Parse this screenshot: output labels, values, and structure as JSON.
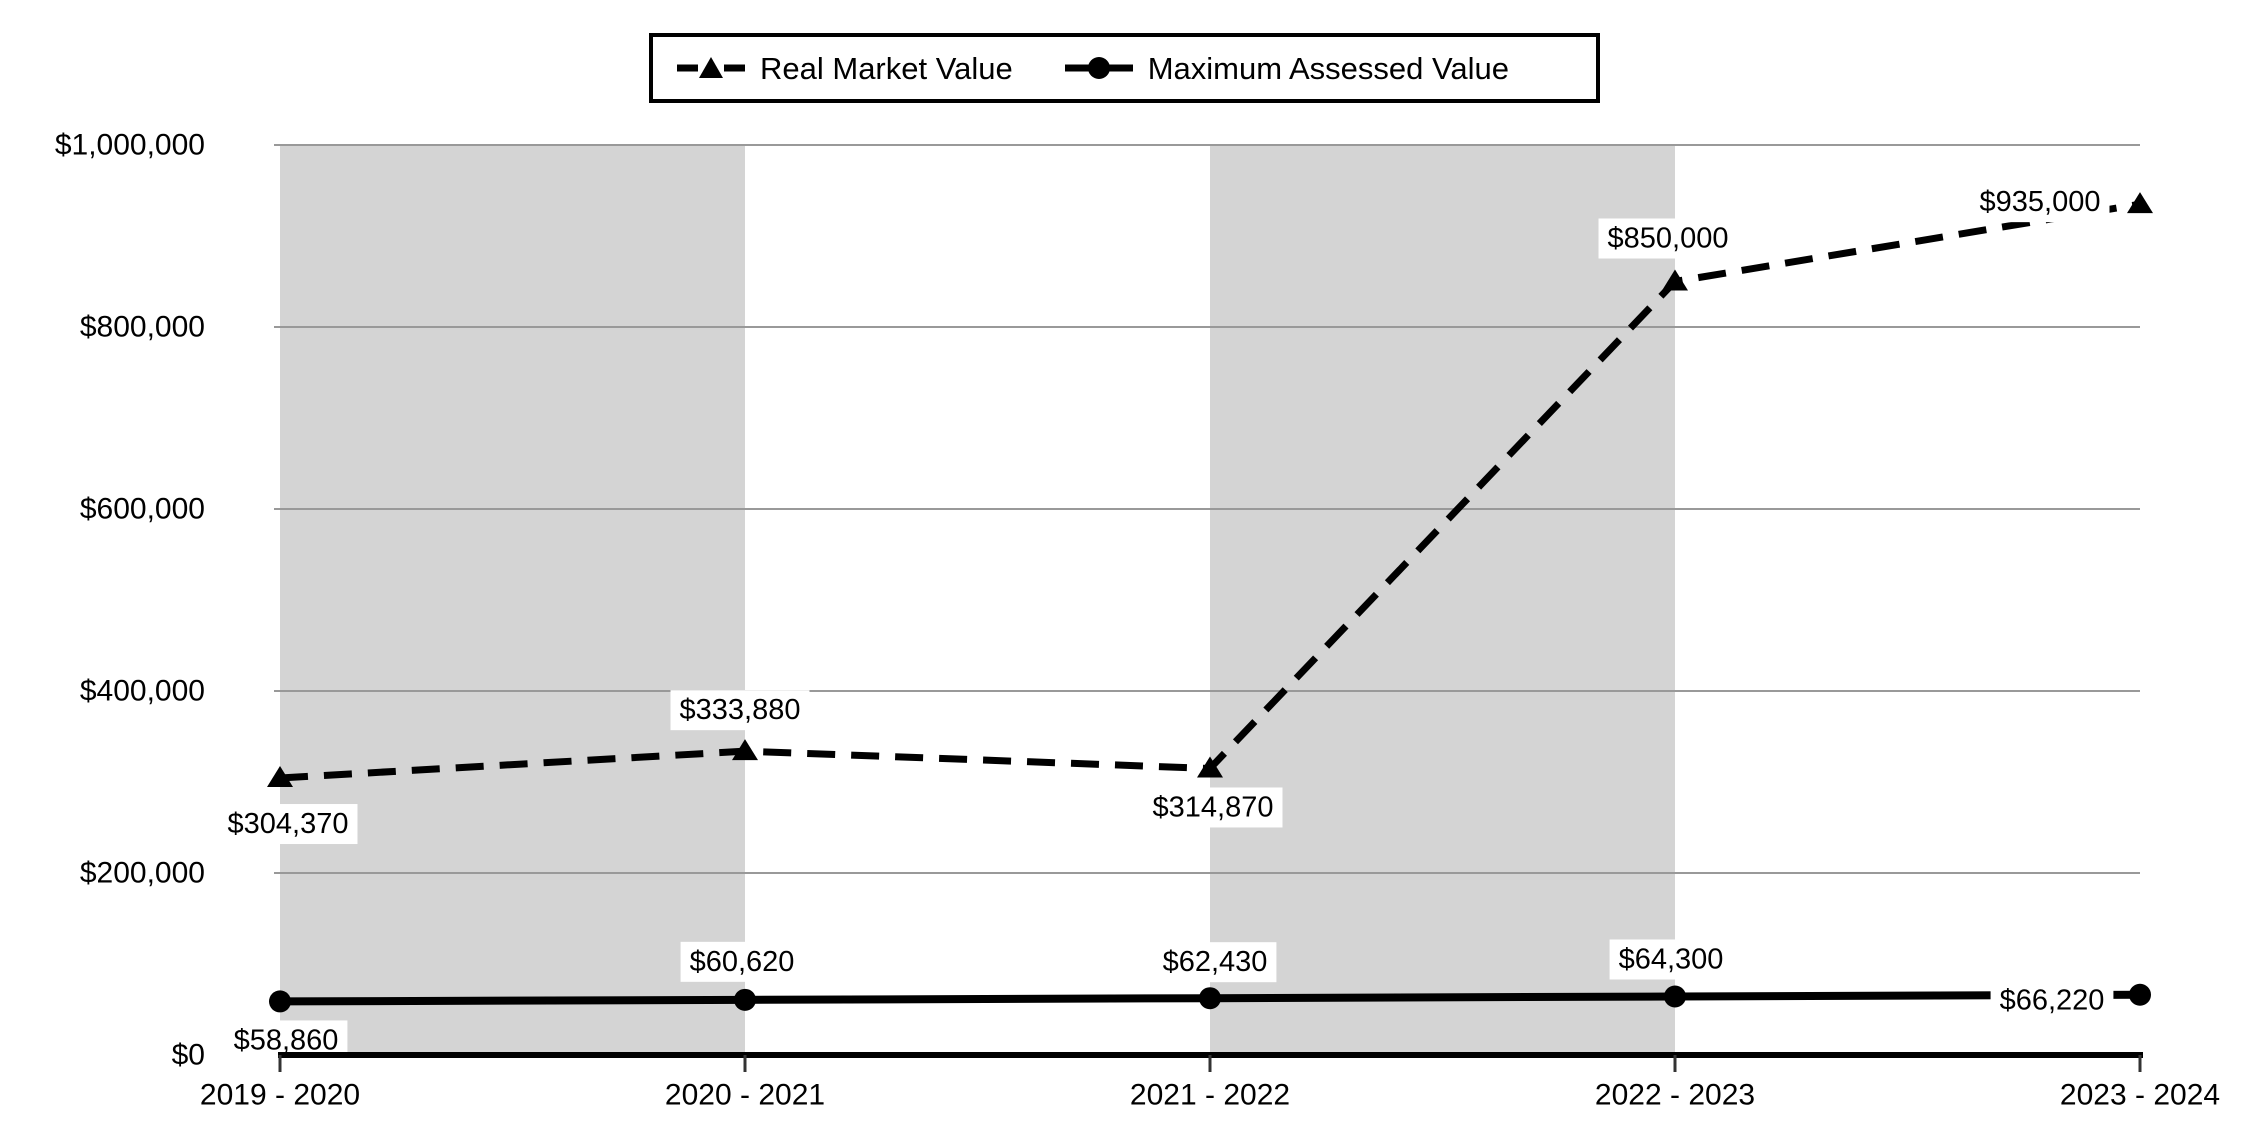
{
  "page": {
    "background": "#ffffff"
  },
  "legend": {
    "items": [
      {
        "label": "Real Market Value",
        "marker": "dashed-line-triangle"
      },
      {
        "label": "Maximum Assessed Value",
        "marker": "solid-line-circle"
      }
    ]
  },
  "chart_data": {
    "type": "line",
    "categories": [
      "2019 - 2020",
      "2020 - 2021",
      "2021 - 2022",
      "2022 - 2023",
      "2023 - 2024"
    ],
    "series": [
      {
        "name": "Real Market Value",
        "line_style": "dashed",
        "marker": "triangle",
        "values": [
          304370,
          333880,
          314870,
          850000,
          935000
        ],
        "labels": [
          "$304,370",
          "$333,880",
          "$314,870",
          "$850,000",
          "$935,000"
        ]
      },
      {
        "name": "Maximum Assessed Value",
        "line_style": "solid",
        "marker": "circle",
        "values": [
          58860,
          60620,
          62430,
          64300,
          66220
        ],
        "labels": [
          "$58,860",
          "$60,620",
          "$62,430",
          "$64,300",
          "$66,220"
        ]
      }
    ],
    "y_axis": {
      "min": 0,
      "max": 1000000,
      "step": 200000,
      "tick_labels": [
        "$0",
        "$200,000",
        "$400,000",
        "$600,000",
        "$800,000",
        "$1,000,000"
      ]
    },
    "x_axis": {
      "tick_labels": [
        "2019 - 2020",
        "2020 - 2021",
        "2021 - 2022",
        "2022 - 2023",
        "2023 - 2024"
      ]
    },
    "ylim": [
      0,
      1000000
    ],
    "grid": true,
    "legend_position": "top",
    "shaded_intervals": [
      [
        0,
        1
      ],
      [
        2,
        3
      ]
    ],
    "colors": {
      "series": "#000000",
      "band": "#d4d4d4",
      "gridline": "#999999",
      "axis": "#000000",
      "tick": "#333333",
      "label_background": "#ffffff",
      "text": "#000000"
    }
  }
}
